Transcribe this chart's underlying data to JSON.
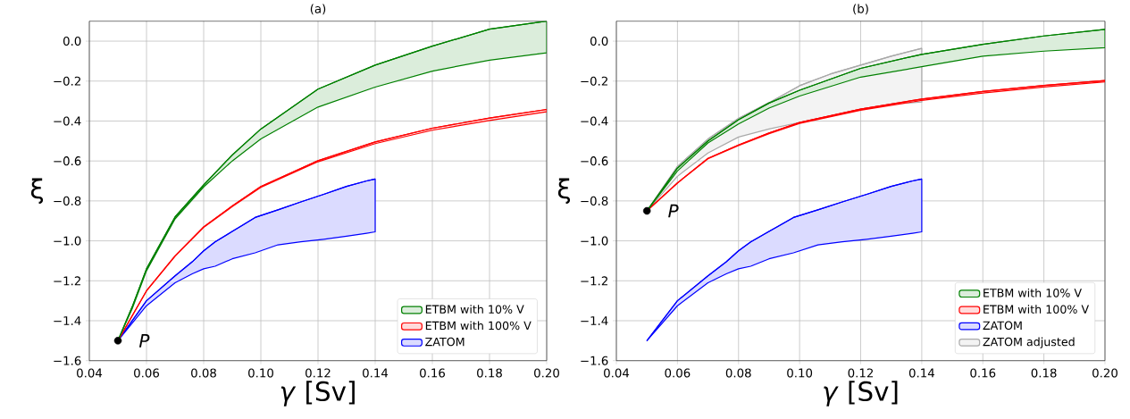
{
  "chart_data": [
    {
      "type": "line",
      "title": "(a)",
      "xlabel": "*γ* [Sv]",
      "ylabel": "ξ",
      "xlim": [
        0.04,
        0.2
      ],
      "ylim": [
        -1.6,
        0.1
      ],
      "xticks": [
        {
          "value": 0.04,
          "label": "0.04"
        },
        {
          "value": 0.06,
          "label": "0.06"
        },
        {
          "value": 0.08,
          "label": "0.08"
        },
        {
          "value": 0.1,
          "label": "0.10"
        },
        {
          "value": 0.12,
          "label": "0.12"
        },
        {
          "value": 0.14,
          "label": "0.14"
        },
        {
          "value": 0.16,
          "label": "0.16"
        },
        {
          "value": 0.18,
          "label": "0.18"
        },
        {
          "value": 0.2,
          "label": "0.20"
        }
      ],
      "yticks": [
        {
          "value": -1.6,
          "label": "−1.6"
        },
        {
          "value": -1.4,
          "label": "−1.4"
        },
        {
          "value": -1.2,
          "label": "−1.2"
        },
        {
          "value": -1.0,
          "label": "−1.0"
        },
        {
          "value": -0.8,
          "label": "−0.8"
        },
        {
          "value": -0.6,
          "label": "−0.6"
        },
        {
          "value": -0.4,
          "label": "−0.4"
        },
        {
          "value": -0.2,
          "label": "−0.2"
        },
        {
          "value": 0.0,
          "label": "0.0"
        }
      ],
      "grid": true,
      "legend": "bottom right",
      "annotations": [
        {
          "text": "P",
          "x": 0.05,
          "y": -1.5
        }
      ],
      "series": [
        {
          "name": "ETBM with 10% V",
          "color": "#008000",
          "x": [
            0.05,
            0.055,
            0.06,
            0.07,
            0.08,
            0.09,
            0.1,
            0.12,
            0.14,
            0.16,
            0.18,
            0.2
          ],
          "values": [
            -1.5,
            -1.33,
            -1.14,
            -0.88,
            -0.72,
            -0.57,
            -0.44,
            -0.24,
            -0.12,
            -0.025,
            0.06,
            0.1
          ],
          "upper": [
            -1.5,
            -1.33,
            -1.14,
            -0.88,
            -0.72,
            -0.57,
            -0.44,
            -0.24,
            -0.12,
            -0.025,
            0.06,
            0.1
          ],
          "lower": [
            -1.5,
            -1.34,
            -1.15,
            -0.89,
            -0.73,
            -0.6,
            -0.49,
            -0.33,
            -0.23,
            -0.15,
            -0.095,
            -0.058
          ]
        },
        {
          "name": "ETBM with 100% V",
          "color": "#ff0000",
          "x": [
            0.05,
            0.06,
            0.07,
            0.08,
            0.09,
            0.1,
            0.12,
            0.14,
            0.16,
            0.18,
            0.2
          ],
          "values": [
            -1.5,
            -1.25,
            -1.075,
            -0.93,
            -0.825,
            -0.728,
            -0.598,
            -0.505,
            -0.436,
            -0.385,
            -0.342
          ],
          "upper": [
            -1.5,
            -1.25,
            -1.075,
            -0.93,
            -0.825,
            -0.728,
            -0.598,
            -0.505,
            -0.436,
            -0.385,
            -0.342
          ],
          "lower": [
            -1.5,
            -1.251,
            -1.077,
            -0.933,
            -0.829,
            -0.732,
            -0.604,
            -0.513,
            -0.446,
            -0.397,
            -0.354
          ]
        },
        {
          "name": "ZATOM",
          "color": "#0000ff",
          "x": [
            0.05,
            0.06,
            0.07,
            0.076,
            0.08,
            0.084,
            0.09,
            0.098,
            0.106,
            0.114,
            0.122,
            0.13,
            0.137,
            0.14
          ],
          "values": [
            -1.5,
            -1.3,
            -1.175,
            -1.105,
            -1.05,
            -1.005,
            -0.953,
            -0.883,
            -0.845,
            -0.805,
            -0.767,
            -0.727,
            -0.7,
            -0.69
          ],
          "upper": [
            -1.5,
            -1.3,
            -1.175,
            -1.105,
            -1.05,
            -1.005,
            -0.953,
            -0.883,
            -0.845,
            -0.805,
            -0.767,
            -0.727,
            -0.7,
            -0.69
          ],
          "lower": [
            -1.5,
            -1.325,
            -1.21,
            -1.165,
            -1.14,
            -1.127,
            -1.09,
            -1.06,
            -1.02,
            -1.005,
            -0.992,
            -0.977,
            -0.962,
            -0.955
          ]
        },
        {
          "type": "scatter",
          "color": "#000000",
          "marker": "circle",
          "x": [
            0.05
          ],
          "values": [
            -1.5
          ]
        }
      ]
    },
    {
      "type": "line",
      "title": "(b)",
      "xlabel": "*γ* [Sv]",
      "ylabel": "ξ",
      "xlim": [
        0.04,
        0.2
      ],
      "ylim": [
        -1.6,
        0.1
      ],
      "xticks": [
        {
          "value": 0.04,
          "label": "0.04"
        },
        {
          "value": 0.06,
          "label": "0.06"
        },
        {
          "value": 0.08,
          "label": "0.08"
        },
        {
          "value": 0.1,
          "label": "0.10"
        },
        {
          "value": 0.12,
          "label": "0.12"
        },
        {
          "value": 0.14,
          "label": "0.14"
        },
        {
          "value": 0.16,
          "label": "0.16"
        },
        {
          "value": 0.18,
          "label": "0.18"
        },
        {
          "value": 0.2,
          "label": "0.20"
        }
      ],
      "yticks": [
        {
          "value": -1.6,
          "label": "−1.6"
        },
        {
          "value": -1.4,
          "label": "−1.4"
        },
        {
          "value": -1.2,
          "label": "−1.2"
        },
        {
          "value": -1.0,
          "label": "−1.0"
        },
        {
          "value": -0.8,
          "label": "−0.8"
        },
        {
          "value": -0.6,
          "label": "−0.6"
        },
        {
          "value": -0.4,
          "label": "−0.4"
        },
        {
          "value": -0.2,
          "label": "−0.2"
        },
        {
          "value": 0.0,
          "label": "0.0"
        }
      ],
      "grid": true,
      "legend": "bottom right",
      "annotations": [
        {
          "text": "P",
          "x": 0.05,
          "y": -0.85
        }
      ],
      "series": [
        {
          "name": "ETBM with 10% V",
          "color": "#008000",
          "x": [
            0.05,
            0.06,
            0.07,
            0.08,
            0.09,
            0.1,
            0.12,
            0.14,
            0.16,
            0.18,
            0.2
          ],
          "values": [
            -0.85,
            -0.636,
            -0.5,
            -0.393,
            -0.31,
            -0.246,
            -0.136,
            -0.066,
            -0.016,
            0.026,
            0.059
          ],
          "upper": [
            -0.85,
            -0.636,
            -0.5,
            -0.393,
            -0.31,
            -0.246,
            -0.136,
            -0.066,
            -0.016,
            0.026,
            0.059
          ],
          "lower": [
            -0.85,
            -0.65,
            -0.51,
            -0.415,
            -0.335,
            -0.275,
            -0.18,
            -0.128,
            -0.075,
            -0.05,
            -0.033
          ]
        },
        {
          "name": "ETBM with 100% V",
          "color": "#ff0000",
          "x": [
            0.05,
            0.06,
            0.07,
            0.08,
            0.09,
            0.1,
            0.12,
            0.14,
            0.16,
            0.18,
            0.2
          ],
          "values": [
            -0.85,
            -0.71,
            -0.587,
            -0.52,
            -0.46,
            -0.407,
            -0.34,
            -0.29,
            -0.252,
            -0.222,
            -0.197
          ],
          "upper": [
            -0.85,
            -0.71,
            -0.587,
            -0.52,
            -0.46,
            -0.407,
            -0.34,
            -0.29,
            -0.252,
            -0.222,
            -0.197
          ],
          "lower": [
            -0.85,
            -0.711,
            -0.589,
            -0.523,
            -0.464,
            -0.412,
            -0.346,
            -0.297,
            -0.26,
            -0.23,
            -0.204
          ]
        },
        {
          "name": "ZATOM",
          "color": "#0000ff",
          "x": [
            0.05,
            0.06,
            0.07,
            0.076,
            0.08,
            0.084,
            0.09,
            0.098,
            0.106,
            0.114,
            0.122,
            0.13,
            0.137,
            0.14
          ],
          "values": [
            -1.5,
            -1.3,
            -1.175,
            -1.105,
            -1.05,
            -1.005,
            -0.953,
            -0.883,
            -0.845,
            -0.805,
            -0.767,
            -0.727,
            -0.7,
            -0.69
          ],
          "upper": [
            -1.5,
            -1.3,
            -1.175,
            -1.105,
            -1.05,
            -1.005,
            -0.953,
            -0.883,
            -0.845,
            -0.805,
            -0.767,
            -0.727,
            -0.7,
            -0.69
          ],
          "lower": [
            -1.5,
            -1.325,
            -1.21,
            -1.165,
            -1.14,
            -1.127,
            -1.09,
            -1.06,
            -1.02,
            -1.005,
            -0.992,
            -0.977,
            -0.962,
            -0.955
          ]
        },
        {
          "name": "ZATOM adjusted",
          "color": "#a9a9a9",
          "x": [
            0.05,
            0.06,
            0.07,
            0.08,
            0.09,
            0.1,
            0.11,
            0.12,
            0.13,
            0.14
          ],
          "values": [
            -0.85,
            -0.628,
            -0.49,
            -0.387,
            -0.308,
            -0.223,
            -0.165,
            -0.12,
            -0.075,
            -0.036
          ],
          "upper": [
            -0.85,
            -0.628,
            -0.49,
            -0.387,
            -0.308,
            -0.223,
            -0.165,
            -0.12,
            -0.075,
            -0.036
          ],
          "lower": [
            -0.85,
            -0.677,
            -0.56,
            -0.48,
            -0.44,
            -0.407,
            -0.375,
            -0.34,
            -0.315,
            -0.305
          ]
        },
        {
          "type": "scatter",
          "color": "#000000",
          "marker": "circle",
          "x": [
            0.05
          ],
          "values": [
            -0.85
          ]
        }
      ]
    }
  ]
}
